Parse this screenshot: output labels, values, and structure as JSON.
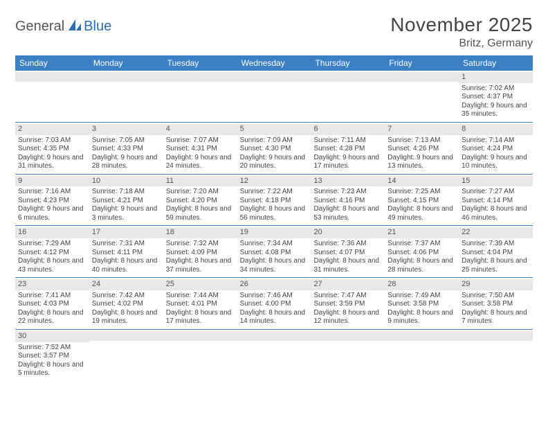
{
  "logo": {
    "text1": "General",
    "text2": "Blue"
  },
  "title": "November 2025",
  "location": "Britz, Germany",
  "colors": {
    "header_bg": "#3b7fc4",
    "row_border": "#3b7fc4",
    "daynum_bg": "#e8e8e8",
    "text": "#444444",
    "accent": "#2d6cb0"
  },
  "weekdays": [
    "Sunday",
    "Monday",
    "Tuesday",
    "Wednesday",
    "Thursday",
    "Friday",
    "Saturday"
  ],
  "weeks": [
    [
      null,
      null,
      null,
      null,
      null,
      null,
      {
        "d": "1",
        "sr": "7:02 AM",
        "ss": "4:37 PM",
        "dl": "9 hours and 35 minutes."
      }
    ],
    [
      {
        "d": "2",
        "sr": "7:03 AM",
        "ss": "4:35 PM",
        "dl": "9 hours and 31 minutes."
      },
      {
        "d": "3",
        "sr": "7:05 AM",
        "ss": "4:33 PM",
        "dl": "9 hours and 28 minutes."
      },
      {
        "d": "4",
        "sr": "7:07 AM",
        "ss": "4:31 PM",
        "dl": "9 hours and 24 minutes."
      },
      {
        "d": "5",
        "sr": "7:09 AM",
        "ss": "4:30 PM",
        "dl": "9 hours and 20 minutes."
      },
      {
        "d": "6",
        "sr": "7:11 AM",
        "ss": "4:28 PM",
        "dl": "9 hours and 17 minutes."
      },
      {
        "d": "7",
        "sr": "7:13 AM",
        "ss": "4:26 PM",
        "dl": "9 hours and 13 minutes."
      },
      {
        "d": "8",
        "sr": "7:14 AM",
        "ss": "4:24 PM",
        "dl": "9 hours and 10 minutes."
      }
    ],
    [
      {
        "d": "9",
        "sr": "7:16 AM",
        "ss": "4:23 PM",
        "dl": "9 hours and 6 minutes."
      },
      {
        "d": "10",
        "sr": "7:18 AM",
        "ss": "4:21 PM",
        "dl": "9 hours and 3 minutes."
      },
      {
        "d": "11",
        "sr": "7:20 AM",
        "ss": "4:20 PM",
        "dl": "8 hours and 59 minutes."
      },
      {
        "d": "12",
        "sr": "7:22 AM",
        "ss": "4:18 PM",
        "dl": "8 hours and 56 minutes."
      },
      {
        "d": "13",
        "sr": "7:23 AM",
        "ss": "4:16 PM",
        "dl": "8 hours and 53 minutes."
      },
      {
        "d": "14",
        "sr": "7:25 AM",
        "ss": "4:15 PM",
        "dl": "8 hours and 49 minutes."
      },
      {
        "d": "15",
        "sr": "7:27 AM",
        "ss": "4:14 PM",
        "dl": "8 hours and 46 minutes."
      }
    ],
    [
      {
        "d": "16",
        "sr": "7:29 AM",
        "ss": "4:12 PM",
        "dl": "8 hours and 43 minutes."
      },
      {
        "d": "17",
        "sr": "7:31 AM",
        "ss": "4:11 PM",
        "dl": "8 hours and 40 minutes."
      },
      {
        "d": "18",
        "sr": "7:32 AM",
        "ss": "4:09 PM",
        "dl": "8 hours and 37 minutes."
      },
      {
        "d": "19",
        "sr": "7:34 AM",
        "ss": "4:08 PM",
        "dl": "8 hours and 34 minutes."
      },
      {
        "d": "20",
        "sr": "7:36 AM",
        "ss": "4:07 PM",
        "dl": "8 hours and 31 minutes."
      },
      {
        "d": "21",
        "sr": "7:37 AM",
        "ss": "4:06 PM",
        "dl": "8 hours and 28 minutes."
      },
      {
        "d": "22",
        "sr": "7:39 AM",
        "ss": "4:04 PM",
        "dl": "8 hours and 25 minutes."
      }
    ],
    [
      {
        "d": "23",
        "sr": "7:41 AM",
        "ss": "4:03 PM",
        "dl": "8 hours and 22 minutes."
      },
      {
        "d": "24",
        "sr": "7:42 AM",
        "ss": "4:02 PM",
        "dl": "8 hours and 19 minutes."
      },
      {
        "d": "25",
        "sr": "7:44 AM",
        "ss": "4:01 PM",
        "dl": "8 hours and 17 minutes."
      },
      {
        "d": "26",
        "sr": "7:46 AM",
        "ss": "4:00 PM",
        "dl": "8 hours and 14 minutes."
      },
      {
        "d": "27",
        "sr": "7:47 AM",
        "ss": "3:59 PM",
        "dl": "8 hours and 12 minutes."
      },
      {
        "d": "28",
        "sr": "7:49 AM",
        "ss": "3:58 PM",
        "dl": "8 hours and 9 minutes."
      },
      {
        "d": "29",
        "sr": "7:50 AM",
        "ss": "3:58 PM",
        "dl": "8 hours and 7 minutes."
      }
    ],
    [
      {
        "d": "30",
        "sr": "7:52 AM",
        "ss": "3:57 PM",
        "dl": "8 hours and 5 minutes."
      },
      null,
      null,
      null,
      null,
      null,
      null
    ]
  ],
  "labels": {
    "sunrise": "Sunrise:",
    "sunset": "Sunset:",
    "daylight": "Daylight:"
  }
}
